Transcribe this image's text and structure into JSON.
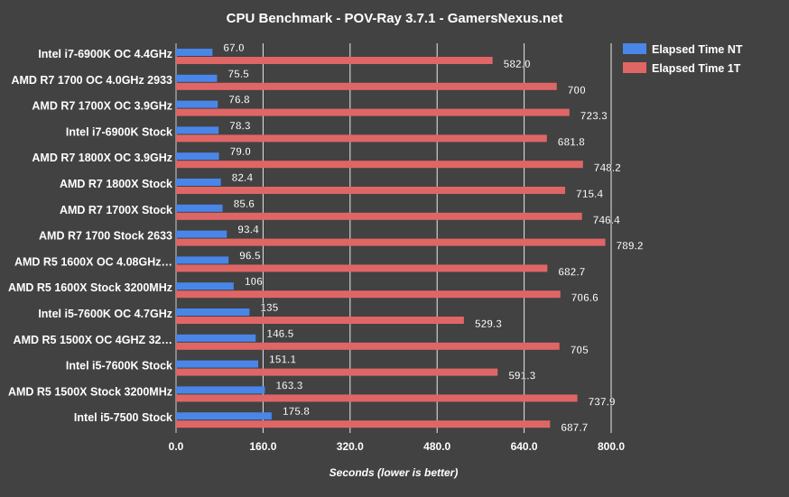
{
  "chart_data": {
    "type": "bar",
    "orientation": "horizontal",
    "title": "CPU Benchmark - POV-Ray 3.7.1 - GamersNexus.net",
    "xlabel": "Seconds (lower is better)",
    "ylabel": "",
    "xlim": [
      0,
      800
    ],
    "xticks": [
      "0.0",
      "160.0",
      "320.0",
      "480.0",
      "640.0",
      "800.0"
    ],
    "grid": true,
    "legend_position": "top-right",
    "categories": [
      "Intel i7-6900K OC 4.4GHz",
      "AMD R7 1700 OC 4.0GHz 2933",
      "AMD R7 1700X OC 3.9GHz",
      "Intel i7-6900K Stock",
      "AMD R7 1800X OC 3.9GHz",
      "AMD R7 1800X Stock",
      "AMD R7 1700X Stock",
      "AMD R7 1700 Stock 2633",
      "AMD R5 1600X OC 4.08GHz…",
      "AMD R5 1600X Stock 3200MHz",
      "Intel i5-7600K OC 4.7GHz",
      "AMD R5 1500X OC 4GHZ 32…",
      "Intel i5-7600K Stock",
      "AMD R5 1500X Stock 3200MHz",
      "Intel i5-7500 Stock"
    ],
    "series": [
      {
        "name": "Elapsed Time NT",
        "color": "#4a86e8",
        "values": [
          67.0,
          75.5,
          76.8,
          78.3,
          79.0,
          82.4,
          85.6,
          93.4,
          96.5,
          106,
          135,
          146.5,
          151.1,
          163.3,
          175.8
        ],
        "labels": [
          "67.0",
          "75.5",
          "76.8",
          "78.3",
          "79.0",
          "82.4",
          "85.6",
          "93.4",
          "96.5",
          "106",
          "135",
          "146.5",
          "151.1",
          "163.3",
          "175.8"
        ]
      },
      {
        "name": "Elapsed Time 1T",
        "color": "#e06666",
        "values": [
          582.0,
          700,
          723.3,
          681.8,
          748.2,
          715.4,
          746.4,
          789.2,
          682.7,
          706.6,
          529.3,
          705,
          591.3,
          737.9,
          687.7
        ],
        "labels": [
          "582.0",
          "700",
          "723.3",
          "681.8",
          "748.2",
          "715.4",
          "746.4",
          "789.2",
          "682.7",
          "706.6",
          "529.3",
          "705",
          "591.3",
          "737.9",
          "687.7"
        ]
      }
    ]
  }
}
